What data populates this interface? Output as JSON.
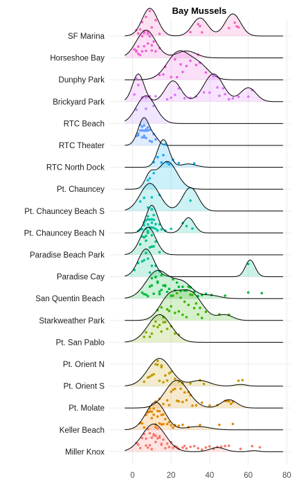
{
  "chart_data": {
    "type": "ridgeline",
    "title": "Bay Mussels",
    "xlabel": "",
    "ylabel": "",
    "xlim": [
      -12,
      82
    ],
    "x_ticks": [
      0,
      20,
      40,
      60,
      80
    ],
    "grid": true,
    "legend": "none",
    "series": [
      {
        "name": "SF Marina",
        "color": "#f565ba",
        "components": [
          [
            9,
            4,
            1.0
          ],
          [
            35,
            4,
            0.65
          ],
          [
            52,
            4,
            0.8
          ]
        ],
        "points": [
          2,
          3,
          4,
          5,
          6,
          7,
          8,
          9,
          10,
          12,
          14,
          30,
          34,
          35,
          36,
          50,
          53,
          54,
          55
        ]
      },
      {
        "name": "Horseshoe Bay",
        "color": "#f25fd2",
        "components": [
          [
            7,
            5,
            1.0
          ],
          [
            28,
            5,
            0.25
          ]
        ],
        "points": [
          1,
          2,
          2,
          3,
          3,
          4,
          5,
          5,
          6,
          6,
          7,
          8,
          8,
          9,
          10,
          10,
          11,
          12,
          14,
          34
        ]
      },
      {
        "name": "Dunphy Park",
        "color": "#ea5fe2",
        "components": [
          [
            24,
            6,
            1.0
          ],
          [
            35,
            5,
            0.45
          ]
        ],
        "points": [
          14,
          16,
          17,
          20,
          22,
          23,
          25,
          26,
          28,
          30,
          33,
          35,
          38
        ]
      },
      {
        "name": "Brickyard Park",
        "color": "#db72fb",
        "components": [
          [
            3,
            3,
            1.0
          ],
          [
            21,
            4,
            0.75
          ],
          [
            42,
            5,
            1.0
          ],
          [
            60,
            4,
            0.5
          ]
        ],
        "points": [
          1,
          2,
          3,
          5,
          7,
          9,
          12,
          18,
          20,
          22,
          24,
          27,
          30,
          33,
          37,
          40,
          42,
          44,
          45,
          47,
          48,
          50,
          52,
          55,
          60,
          62
        ]
      },
      {
        "name": "RTC Beach",
        "color": "#b983ff",
        "components": [
          [
            7,
            5,
            1.0
          ]
        ],
        "points": [
          2,
          7,
          11
        ]
      },
      {
        "name": "RTC Theater",
        "color": "#619cff",
        "components": [
          [
            6,
            3,
            1.0
          ],
          [
            12,
            2,
            0.2
          ]
        ],
        "points": [
          2,
          3,
          3,
          4,
          4,
          5,
          5,
          5,
          6,
          6,
          6,
          6,
          7,
          7,
          7,
          8,
          8,
          9,
          9,
          10,
          11,
          12
        ]
      },
      {
        "name": "RTC North Dock",
        "color": "#00a9ff",
        "components": [
          [
            16,
            3,
            1.0
          ],
          [
            29,
            4,
            0.12
          ]
        ],
        "points": [
          11,
          13,
          15,
          16,
          17,
          18,
          19,
          21,
          24,
          32
        ]
      },
      {
        "name": "Pt. Chauncey",
        "color": "#00b8e7",
        "components": [
          [
            9,
            2.5,
            0.45
          ],
          [
            18,
            5,
            1.0
          ]
        ],
        "points": [
          8,
          9,
          11
        ]
      },
      {
        "name": "Pt. Chauncey Beach S",
        "color": "#00bfc4",
        "components": [
          [
            9,
            5,
            1.0
          ],
          [
            30,
            4,
            0.85
          ]
        ],
        "points": [
          4,
          6,
          8,
          10,
          14,
          30
        ]
      },
      {
        "name": "Pt. Chauncey Beach N",
        "color": "#00c1a3",
        "components": [
          [
            10,
            3,
            1.0
          ],
          [
            29,
            3,
            0.55
          ]
        ],
        "points": [
          3,
          4,
          5,
          6,
          6,
          7,
          7,
          8,
          8,
          8,
          9,
          9,
          9,
          10,
          10,
          10,
          10,
          11,
          11,
          11,
          12,
          12,
          13,
          13,
          14,
          15,
          17,
          20,
          26,
          28,
          31
        ]
      },
      {
        "name": "Paradise Beach Park",
        "color": "#00be7d",
        "components": [
          [
            8,
            4,
            1.0
          ]
        ],
        "points": [
          4,
          5,
          6,
          7,
          7,
          8,
          8,
          9,
          10,
          10,
          11,
          12,
          14
        ]
      },
      {
        "name": "Paradise Cay",
        "color": "#00c08b",
        "components": [
          [
            7,
            4,
            1.0
          ],
          [
            61,
            2.5,
            0.6
          ]
        ],
        "points": [
          1,
          3,
          5,
          6,
          7,
          8,
          9,
          10,
          12,
          14,
          60
        ]
      },
      {
        "name": "San Quentin Beach",
        "color": "#00ba38",
        "components": [
          [
            13,
            6,
            1.0
          ],
          [
            26,
            5,
            0.55
          ],
          [
            40,
            5,
            0.12
          ]
        ],
        "points": [
          5,
          6,
          7,
          8,
          9,
          10,
          10,
          11,
          12,
          12,
          13,
          13,
          14,
          14,
          15,
          15,
          16,
          17,
          17,
          18,
          19,
          20,
          21,
          22,
          23,
          24,
          25,
          26,
          27,
          28,
          29,
          30,
          32,
          34,
          36,
          38,
          41,
          48,
          60,
          67
        ]
      },
      {
        "name": "Starkweather Park",
        "color": "#39b600",
        "components": [
          [
            19,
            5,
            0.8
          ],
          [
            30,
            6,
            1.0
          ],
          [
            48,
            4,
            0.2
          ]
        ],
        "points": [
          13,
          15,
          16,
          18,
          19,
          20,
          21,
          22,
          23,
          24,
          25,
          26,
          27,
          28,
          29,
          30,
          31,
          32,
          33,
          34,
          35,
          36,
          38,
          45,
          50
        ]
      },
      {
        "name": "Pt. San Pablo",
        "color": "#7cae00",
        "components": [
          [
            14,
            6,
            1.0
          ]
        ],
        "points": [
          6,
          7,
          9,
          10,
          11,
          12,
          13,
          14,
          15,
          16,
          17,
          18,
          20,
          22,
          24
        ]
      },
      {
        "name": "Pt. Orient N",
        "color": "#9aa800",
        "components": [],
        "points": []
      },
      {
        "name": "Pt. Orient S",
        "color": "#c09b00",
        "components": [
          [
            14,
            6,
            1.0
          ],
          [
            35,
            5,
            0.2
          ],
          [
            56,
            3,
            0.06
          ]
        ],
        "points": [
          6,
          8,
          9,
          10,
          11,
          12,
          13,
          13,
          14,
          15,
          15,
          16,
          17,
          18,
          19,
          20,
          22,
          24,
          26,
          30,
          35,
          37,
          55,
          57
        ]
      },
      {
        "name": "Pt. Molate",
        "color": "#d89000",
        "components": [
          [
            23,
            6,
            1.0
          ],
          [
            50,
            4,
            0.3
          ]
        ],
        "points": [
          12,
          14,
          16,
          18,
          19,
          20,
          21,
          22,
          23,
          24,
          25,
          26,
          27,
          28,
          29,
          30,
          31,
          33,
          36,
          40,
          44,
          48,
          49,
          50,
          51,
          52
        ]
      },
      {
        "name": "Keller Beach",
        "color": "#e58700",
        "components": [
          [
            12,
            5,
            1.0
          ],
          [
            34,
            6,
            0.12
          ]
        ],
        "points": [
          4,
          5,
          6,
          7,
          8,
          8,
          9,
          9,
          10,
          10,
          11,
          11,
          12,
          12,
          13,
          13,
          14,
          14,
          15,
          15,
          16,
          16,
          17,
          18,
          19,
          20,
          21,
          22,
          24,
          26,
          29,
          35,
          45,
          52
        ]
      },
      {
        "name": "Miller Knox",
        "color": "#f8766d",
        "components": [
          [
            11,
            6,
            1.0
          ],
          [
            44,
            4,
            0.15
          ],
          [
            63,
            2.5,
            0.04
          ]
        ],
        "points": [
          2,
          3,
          4,
          5,
          6,
          7,
          7,
          8,
          8,
          9,
          9,
          10,
          10,
          11,
          11,
          12,
          12,
          13,
          13,
          14,
          14,
          15,
          15,
          16,
          17,
          18,
          19,
          20,
          21,
          22,
          23,
          24,
          26,
          27,
          28,
          30,
          32,
          34,
          36,
          38,
          40,
          42,
          44,
          46,
          48,
          50,
          56,
          62,
          66
        ]
      }
    ]
  }
}
